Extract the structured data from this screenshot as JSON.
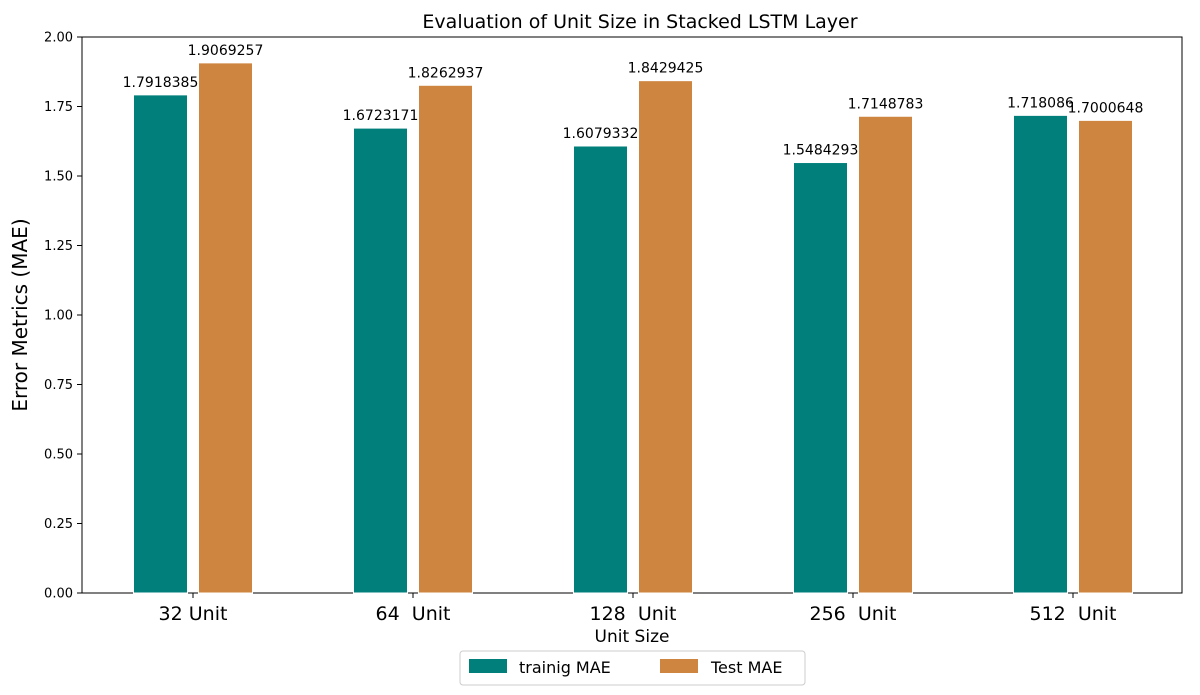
{
  "chart_data": {
    "type": "bar",
    "title": "Evaluation of Unit Size in Stacked LSTM Layer",
    "xlabel": "Unit Size",
    "ylabel": "Error Metrics (MAE)",
    "categories": [
      "32 Unit",
      "64  Unit",
      "128  Unit",
      "256  Unit",
      "512  Unit"
    ],
    "series": [
      {
        "name": "trainig MAE",
        "color": "#007f7b",
        "values": [
          1.7918385,
          1.6723171,
          1.6079332,
          1.5484293,
          1.718086
        ],
        "labels": [
          "1.7918385",
          "1.6723171",
          "1.6079332",
          "1.5484293",
          "1.718086"
        ]
      },
      {
        "name": "Test MAE",
        "color": "#cd853f",
        "values": [
          1.9069257,
          1.8262937,
          1.8429425,
          1.7148783,
          1.7000648
        ],
        "labels": [
          "1.9069257",
          "1.8262937",
          "1.8429425",
          "1.7148783",
          "1.7000648"
        ]
      }
    ],
    "ylim": [
      0,
      2.0
    ],
    "yticks": [
      "0.00",
      "0.25",
      "0.50",
      "0.75",
      "1.00",
      "1.25",
      "1.50",
      "1.75",
      "2.00"
    ],
    "grid": false,
    "legend_position": "bottom-center"
  }
}
